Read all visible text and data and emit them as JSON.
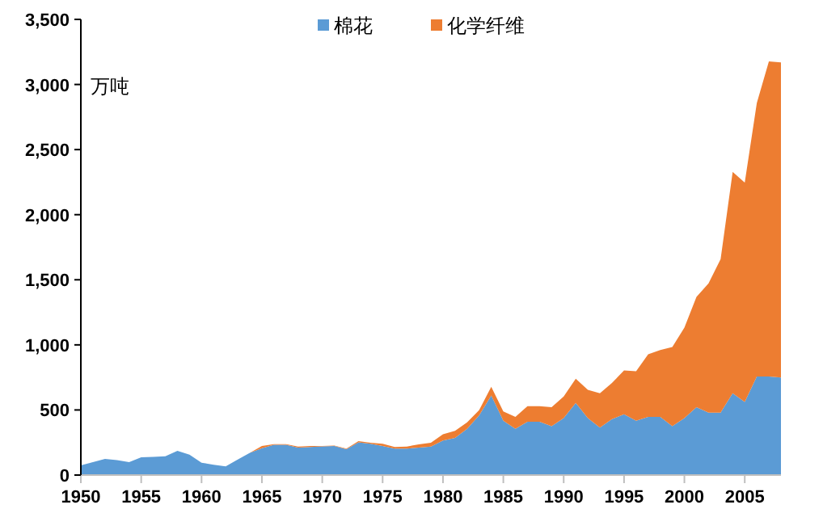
{
  "chart_data": {
    "type": "area",
    "stacked": true,
    "ylabel": "万吨",
    "legend": "top",
    "grid": false,
    "x": [
      1950,
      1951,
      1952,
      1953,
      1954,
      1955,
      1956,
      1957,
      1958,
      1959,
      1960,
      1961,
      1962,
      1963,
      1964,
      1965,
      1966,
      1967,
      1968,
      1969,
      1970,
      1971,
      1972,
      1973,
      1974,
      1975,
      1976,
      1977,
      1978,
      1979,
      1980,
      1981,
      1982,
      1983,
      1984,
      1985,
      1986,
      1987,
      1988,
      1989,
      1990,
      1991,
      1992,
      1993,
      1994,
      1995,
      1996,
      1997,
      1998,
      1999,
      2000,
      2001,
      2002,
      2003,
      2004,
      2005,
      2006,
      2007,
      2008
    ],
    "series": [
      {
        "name": "棉花",
        "color": "#5b9bd5",
        "values": [
          74,
          100,
          124,
          115,
          99,
          136,
          140,
          145,
          186,
          157,
          95,
          79,
          66,
          120,
          170,
          207,
          232,
          232,
          211,
          215,
          220,
          223,
          199,
          252,
          240,
          223,
          203,
          203,
          211,
          219,
          265,
          285,
          356,
          459,
          612,
          418,
          356,
          409,
          409,
          376,
          438,
          554,
          438,
          364,
          430,
          467,
          418,
          447,
          447,
          376,
          438,
          521,
          480,
          480,
          629,
          562,
          757,
          757,
          750
        ]
      },
      {
        "name": "化学纤维",
        "color": "#ed7d31",
        "values": [
          0,
          0,
          0,
          0,
          0,
          0,
          0,
          0,
          0,
          0,
          0,
          0,
          0,
          0,
          0,
          16,
          5,
          5,
          8,
          8,
          4,
          4,
          4,
          8,
          8,
          17,
          12,
          16,
          25,
          29,
          49,
          54,
          49,
          40,
          66,
          70,
          91,
          120,
          120,
          145,
          166,
          186,
          216,
          265,
          277,
          336,
          380,
          480,
          513,
          608,
          695,
          848,
          993,
          1179,
          1700,
          1684,
          2101,
          2420,
          2419
        ]
      }
    ],
    "xlim": [
      1950,
      2008
    ],
    "xticks": [
      1950,
      1955,
      1960,
      1965,
      1970,
      1975,
      1980,
      1985,
      1990,
      1995,
      2000,
      2005
    ],
    "ylim": [
      0,
      3500
    ],
    "yticks": [
      {
        "value": 0,
        "label": "0"
      },
      {
        "value": 500,
        "label": "500"
      },
      {
        "value": 1000,
        "label": "1,000"
      },
      {
        "value": 1500,
        "label": "1,500"
      },
      {
        "value": 2000,
        "label": "2,000"
      },
      {
        "value": 2500,
        "label": "2,500"
      },
      {
        "value": 3000,
        "label": "3,000"
      },
      {
        "value": 3500,
        "label": "3,500"
      }
    ]
  }
}
